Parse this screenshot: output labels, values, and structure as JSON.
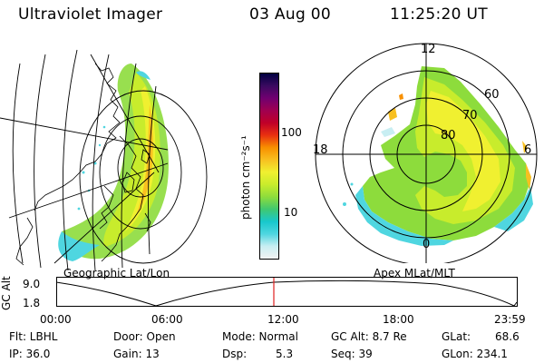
{
  "header": {
    "title": "Ultraviolet Imager",
    "date": "03 Aug 00",
    "time": "11:25:20 UT"
  },
  "left_panel": {
    "label": "Geographic Lat/Lon"
  },
  "right_panel": {
    "label": "Apex MLat/MLT",
    "mlt_labels": {
      "top": "12",
      "left": "18",
      "right": "6",
      "bottom": "0"
    },
    "lat_labels": [
      "60",
      "70",
      "80"
    ]
  },
  "colorbar": {
    "unit_label": "photon cm⁻²s⁻¹",
    "ticks": [
      "100",
      "10"
    ],
    "colors": [
      "#f2f2f2",
      "#c8eef2",
      "#4fd6e0",
      "#18c8cc",
      "#40c870",
      "#8ddc3c",
      "#c8ec2c",
      "#f0f030",
      "#f8c020",
      "#f89000",
      "#e83010",
      "#c00028",
      "#a00050",
      "#700070",
      "#3a0a60",
      "#000040"
    ]
  },
  "timeline": {
    "axis_label": "GC Alt",
    "y_top": "9.0",
    "y_bottom": "1.8",
    "ticks": [
      "00:00",
      "06:00",
      "12:00",
      "18:00",
      "23:59"
    ],
    "current_marker_color": "#e02020"
  },
  "info": {
    "flt": "Flt: LBHL",
    "ip": "IP: 36.0",
    "door": "Door: Open",
    "gain": "Gain: 13",
    "mode": "Mode: Normal",
    "dsp": "Dsp:",
    "dsp_value": "5.3",
    "gcalt": "GC Alt: 8.7 Re",
    "seq": "Seq: 39",
    "glat": "GLat:",
    "glat_value": "68.6",
    "glon": "GLon: 234.1"
  }
}
